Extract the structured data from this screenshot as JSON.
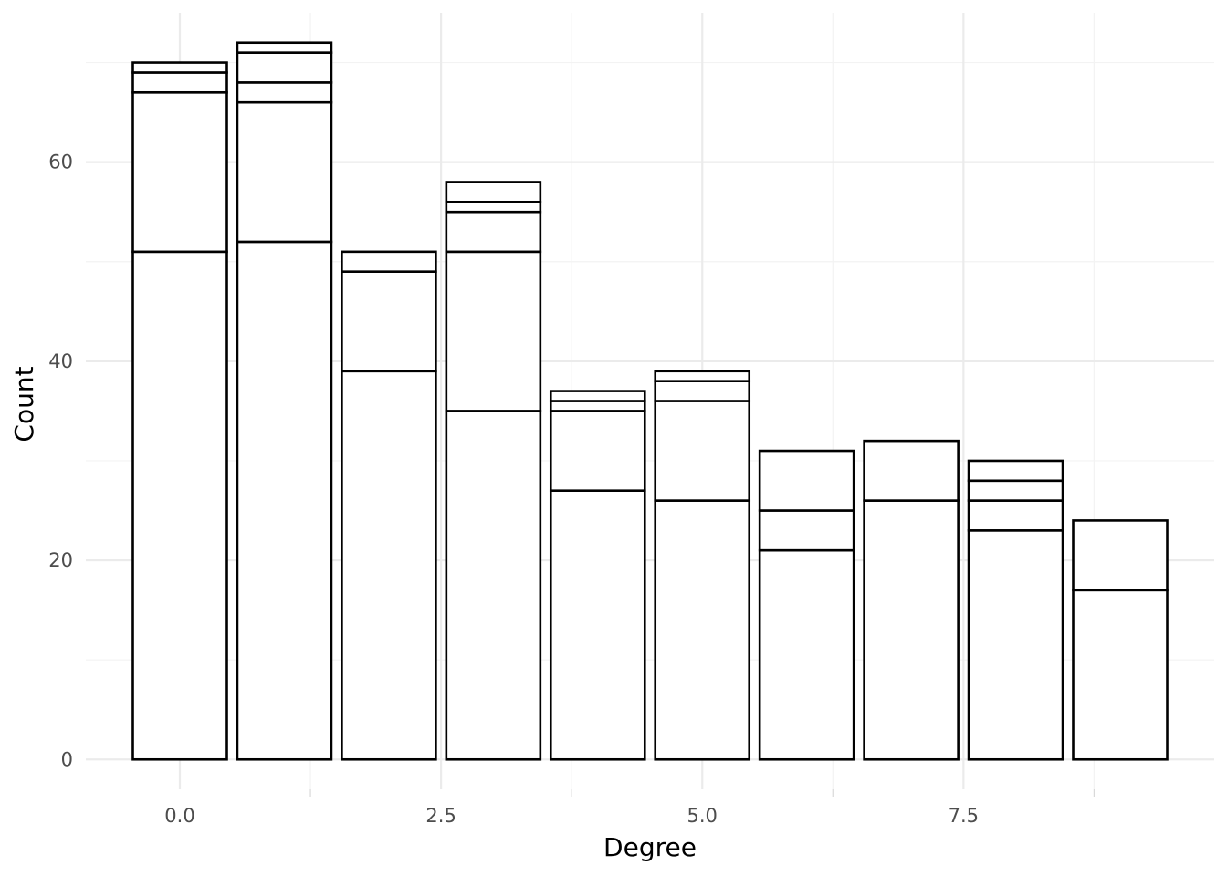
{
  "chart_data": {
    "type": "bar",
    "stacked": true,
    "xlabel": "Degree",
    "ylabel": "Count",
    "xlim": [
      -0.9,
      9.9
    ],
    "ylim": [
      -3,
      75
    ],
    "x_ticks": [
      0.0,
      2.5,
      5.0,
      7.5
    ],
    "x_tick_labels": [
      "0.0",
      "2.5",
      "5.0",
      "7.5"
    ],
    "y_ticks": [
      0,
      20,
      40,
      60
    ],
    "y_tick_labels": [
      "0",
      "20",
      "40",
      "60"
    ],
    "bar_width": 0.9,
    "bars": [
      {
        "x": 0,
        "total": 70,
        "segments": [
          51,
          16,
          2,
          1
        ]
      },
      {
        "x": 1,
        "total": 72,
        "segments": [
          52,
          14,
          2,
          3,
          1
        ]
      },
      {
        "x": 2,
        "total": 51,
        "segments": [
          39,
          10,
          2
        ]
      },
      {
        "x": 3,
        "total": 58,
        "segments": [
          35,
          16,
          4,
          1,
          2
        ]
      },
      {
        "x": 4,
        "total": 37,
        "segments": [
          27,
          8,
          1,
          1
        ]
      },
      {
        "x": 5,
        "total": 39,
        "segments": [
          26,
          10,
          2,
          1
        ]
      },
      {
        "x": 6,
        "total": 31,
        "segments": [
          21,
          4,
          6
        ]
      },
      {
        "x": 7,
        "total": 32,
        "segments": [
          26,
          6
        ]
      },
      {
        "x": 8,
        "total": 30,
        "segments": [
          23,
          3,
          2,
          2
        ]
      },
      {
        "x": 9,
        "total": 24,
        "segments": [
          17,
          7
        ]
      }
    ],
    "fill_color": "#ffffff",
    "outline_color": "#000000",
    "grid": true,
    "legend": "none"
  }
}
